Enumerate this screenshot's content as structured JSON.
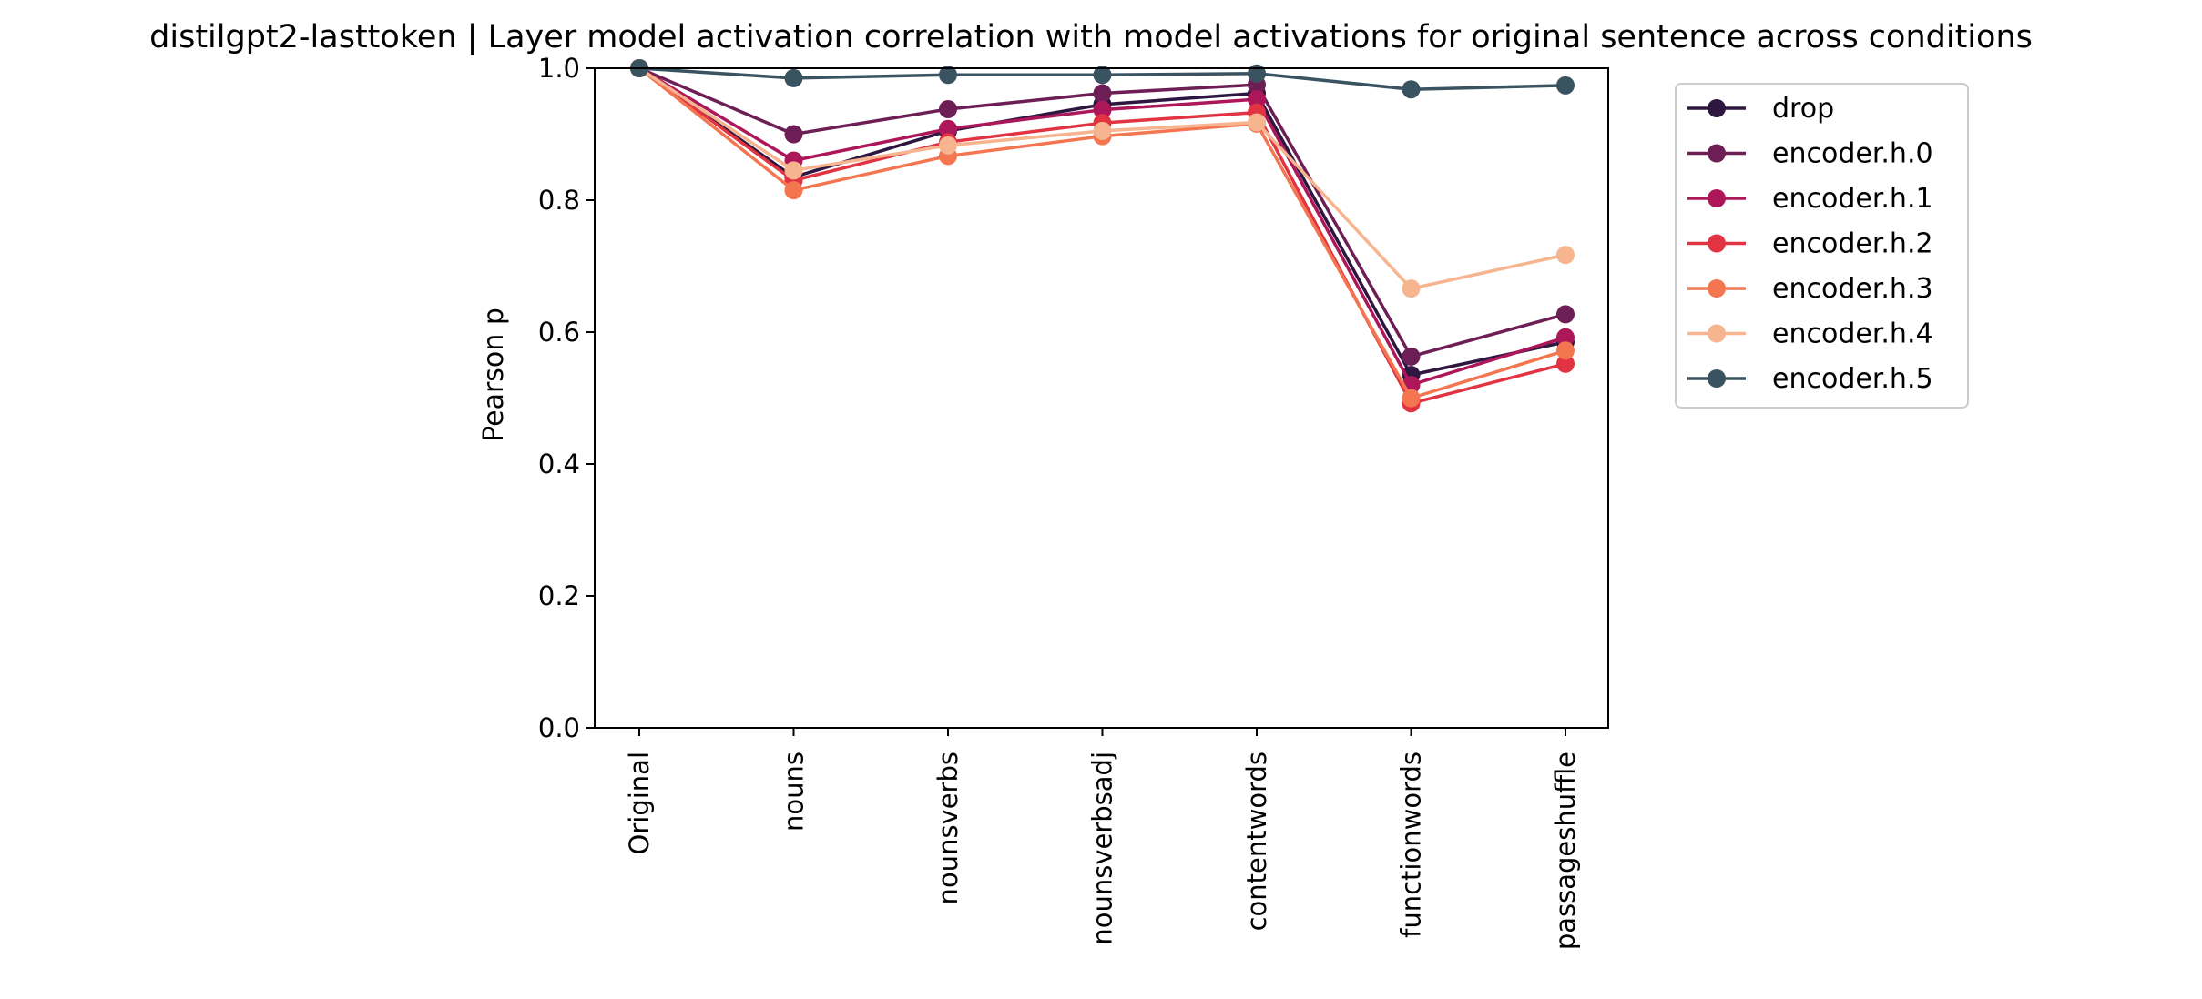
{
  "chart_data": {
    "type": "line",
    "title": "distilgpt2-lasttoken | Layer model activation correlation with model activations for original sentence across conditions",
    "xlabel": "",
    "ylabel": "Pearson p",
    "ylim": [
      0,
      1
    ],
    "yticks": [
      "0.0",
      "0.2",
      "0.4",
      "0.6",
      "0.8",
      "1.0"
    ],
    "grid": false,
    "legend_position": "outside-right",
    "categories": [
      "Original",
      "nouns",
      "nounsverbs",
      "nounsverbsadj",
      "contentwords",
      "functionwords",
      "passageshuffle"
    ],
    "series": [
      {
        "name": "drop",
        "color": "#2d1640",
        "values": [
          1.0,
          0.835,
          0.905,
          0.945,
          0.962,
          0.535,
          0.585
        ]
      },
      {
        "name": "encoder.h.0",
        "color": "#6d1e55",
        "values": [
          1.0,
          0.9,
          0.938,
          0.962,
          0.975,
          0.563,
          0.627
        ]
      },
      {
        "name": "encoder.h.1",
        "color": "#ad1759",
        "values": [
          1.0,
          0.86,
          0.908,
          0.937,
          0.953,
          0.52,
          0.592
        ]
      },
      {
        "name": "encoder.h.2",
        "color": "#e13342",
        "values": [
          1.0,
          0.83,
          0.888,
          0.917,
          0.933,
          0.492,
          0.552
        ]
      },
      {
        "name": "encoder.h.3",
        "color": "#f37651",
        "values": [
          1.0,
          0.815,
          0.867,
          0.897,
          0.916,
          0.5,
          0.572
        ]
      },
      {
        "name": "encoder.h.4",
        "color": "#f6b48f",
        "values": [
          1.0,
          0.845,
          0.883,
          0.905,
          0.918,
          0.666,
          0.717
        ]
      },
      {
        "name": "encoder.h.5",
        "color": "#3a5361",
        "values": [
          1.0,
          0.985,
          0.99,
          0.99,
          0.992,
          0.968,
          0.974
        ]
      }
    ]
  }
}
